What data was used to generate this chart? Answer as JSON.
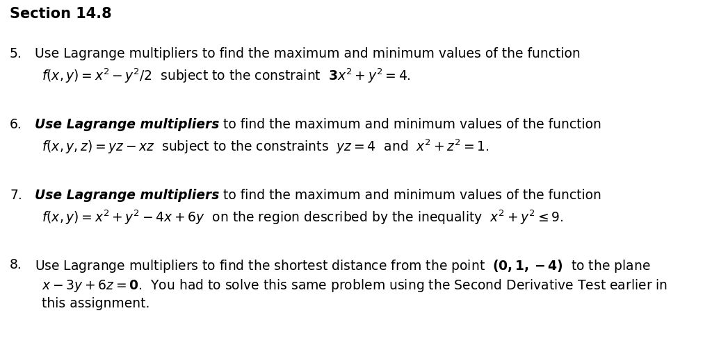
{
  "bg_color": "#ffffff",
  "figsize": [
    10.24,
    4.87
  ],
  "dpi": 100,
  "section_title": "Section 14.8",
  "items": [
    {
      "number": "5.",
      "line1": "Use Lagrange multipliers to find the maximum and minimum values of the function",
      "line2": "$\\it{f}$$(\\it{x},\\it{y})=\\it{x}^2-\\it{y}^2/2$  subject to the constraint  $\\bf{3}\\it{x}^2+\\it{y}^2=4$.",
      "line3": null,
      "bold_prefix": false
    },
    {
      "number": "6.",
      "line1_bold": "Use Lagrange multipliers",
      "line1_rest": " to find the maximum and minimum values of the function",
      "line2": "$\\it{f}$$(\\it{x},\\it{y},\\it{z})=\\it{yz}-\\it{xz}$  subject to the constraints  $\\it{yz}=4$  and  $\\it{x}^2+\\it{z}^2=1$.",
      "line3": null,
      "bold_prefix": true
    },
    {
      "number": "7.",
      "line1_bold": "Use Lagrange multipliers",
      "line1_rest": " to find the maximum and minimum values of the function",
      "line2": "$\\it{f}$$(\\it{x},\\it{y})=\\it{x}^2+\\it{y}^2-4\\it{x}+6\\it{y}$  on the region described by the inequality  $\\it{x}^2+\\it{y}^2\\leq 9$.",
      "line3": null,
      "bold_prefix": true
    },
    {
      "number": "8.",
      "line1": "Use Lagrange multipliers to find the shortest distance from the point  $\\bf{(0, 1, -4)}$  to the plane",
      "line2": "$\\it{x}-3\\it{y}+6\\it{z}=\\bf{0}$.  You had to solve this same problem using the Second Derivative Test earlier in",
      "line3": "this assignment.",
      "bold_prefix": false
    }
  ]
}
